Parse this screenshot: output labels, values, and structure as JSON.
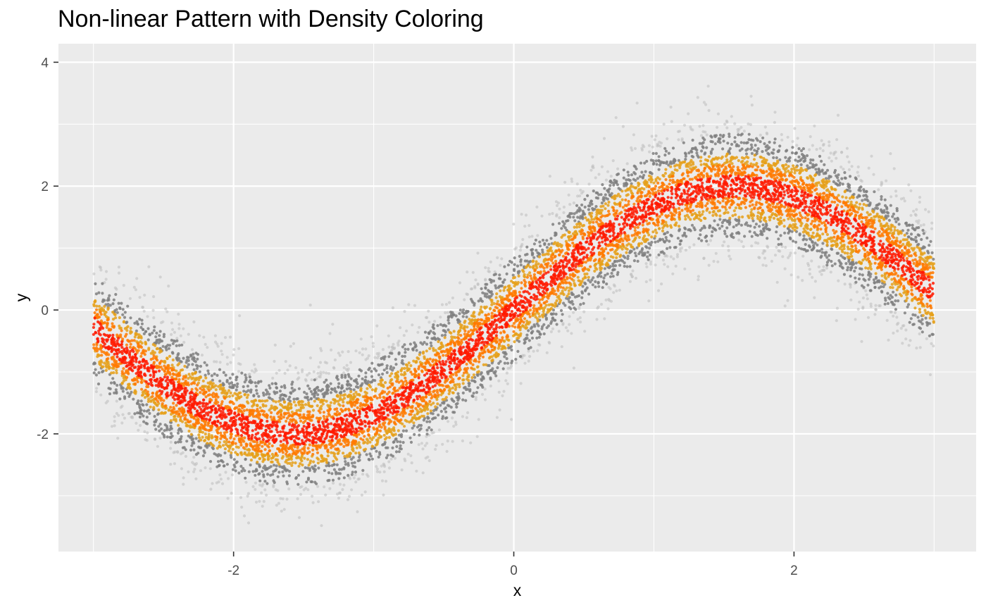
{
  "chart_data": {
    "type": "scatter",
    "title": "Non-linear Pattern with Density Coloring",
    "xlabel": "x",
    "ylabel": "y",
    "xlim": [
      -3.25,
      3.3
    ],
    "ylim": [
      -3.9,
      4.3
    ],
    "x_ticks": [
      -2,
      0,
      2
    ],
    "x_tick_labels": [
      "-2",
      "0",
      "2"
    ],
    "y_ticks": [
      -2,
      0,
      2,
      4
    ],
    "y_tick_labels": [
      "-2",
      "0",
      "2",
      "4"
    ],
    "grid": true,
    "legend": "none",
    "trend": {
      "formula": "y = 2*sin(x)",
      "noise_sd": 0.5,
      "x_range": [
        -3,
        3
      ]
    },
    "point_count": 10000,
    "color_scale": {
      "low": "#bdbdbd",
      "mid_low": "#7f7f7f",
      "mid": "#e5a01a",
      "mid_high": "#ff7a00",
      "high": "#ff1a00"
    },
    "panel_background": "#ebebeb",
    "grid_color": "#ffffff"
  }
}
